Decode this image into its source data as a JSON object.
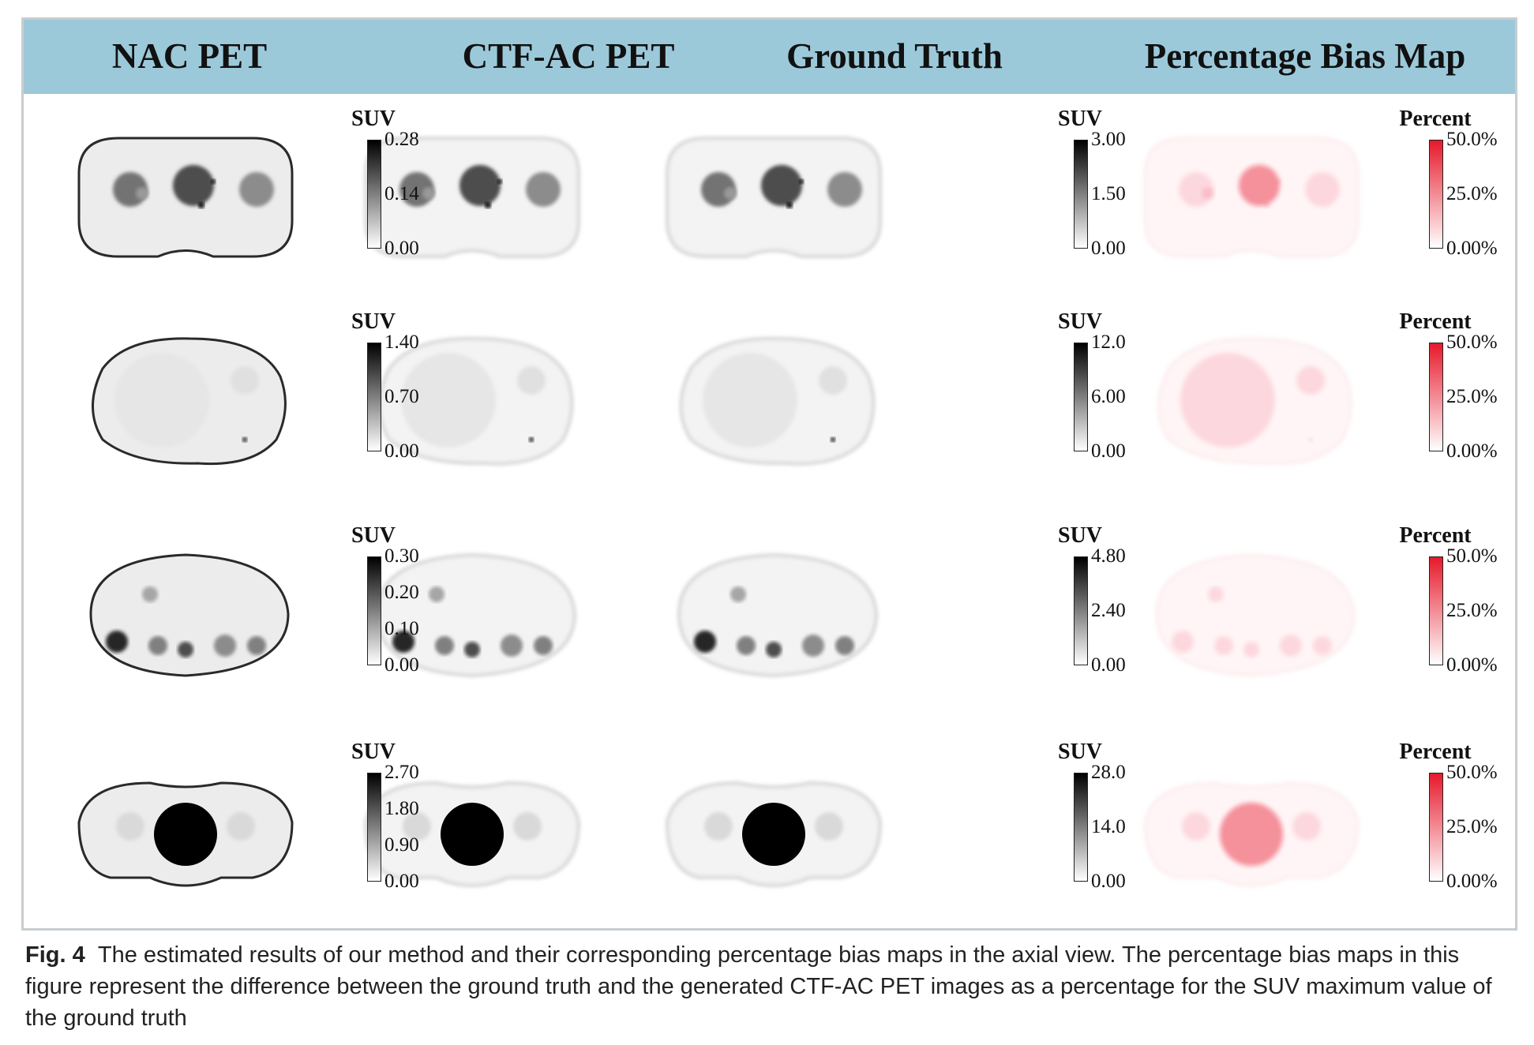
{
  "header": {
    "columns": [
      "NAC PET",
      "CTF-AC PET",
      "Ground Truth",
      "Percentage Bias Map"
    ]
  },
  "rows": [
    {
      "nac_bar": {
        "title": "SUV",
        "ticks": [
          "0.28",
          "0.14",
          "0.00"
        ]
      },
      "gt_bar": {
        "title": "SUV",
        "ticks": [
          "3.00",
          "1.50",
          "0.00"
        ]
      },
      "bias_bar": {
        "title": "Percent",
        "ticks": [
          "50.0%",
          "25.0%",
          "0.00%"
        ]
      }
    },
    {
      "nac_bar": {
        "title": "SUV",
        "ticks": [
          "1.40",
          "0.70",
          "0.00"
        ]
      },
      "gt_bar": {
        "title": "SUV",
        "ticks": [
          "12.0",
          "6.00",
          "0.00"
        ]
      },
      "bias_bar": {
        "title": "Percent",
        "ticks": [
          "50.0%",
          "25.0%",
          "0.00%"
        ]
      }
    },
    {
      "nac_bar": {
        "title": "SUV",
        "ticks": [
          "0.30",
          "0.20",
          "0.10",
          "0.00"
        ]
      },
      "gt_bar": {
        "title": "SUV",
        "ticks": [
          "4.80",
          "2.40",
          "0.00"
        ]
      },
      "bias_bar": {
        "title": "Percent",
        "ticks": [
          "50.0%",
          "25.0%",
          "0.00%"
        ]
      }
    },
    {
      "nac_bar": {
        "title": "SUV",
        "ticks": [
          "2.70",
          "1.80",
          "0.90",
          "0.00"
        ]
      },
      "gt_bar": {
        "title": "SUV",
        "ticks": [
          "28.0",
          "14.0",
          "0.00"
        ]
      },
      "bias_bar": {
        "title": "Percent",
        "ticks": [
          "50.0%",
          "25.0%",
          "0.00%"
        ]
      }
    }
  ],
  "caption": {
    "label": "Fig. 4",
    "text": "The estimated results of our method and their corresponding percentage bias maps in the axial view. The percentage bias maps in this figure represent the difference between the ground truth and the generated CTF-AC PET images as a percentage for the SUV maximum value of the ground truth"
  },
  "colors": {
    "header_bg": "#9cc9d9",
    "bias_red": "#e6192b",
    "frame_border": "#c8cdd1"
  }
}
